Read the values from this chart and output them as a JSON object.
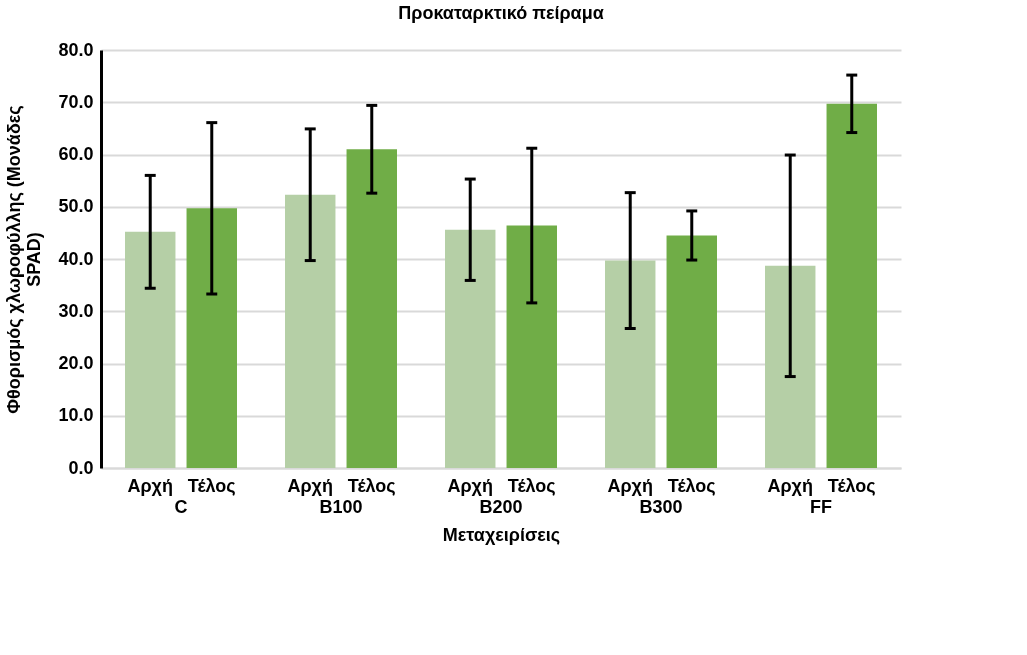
{
  "chart_data": {
    "type": "bar",
    "title": "Προκαταρκτικό πείραμα",
    "xlabel": "Μεταχειρίσεις",
    "ylabel": "Φθορισμός χλωροφύλλης (Μονάδες SPAD)",
    "categories": [
      "C",
      "B100",
      "B200",
      "B300",
      "FF"
    ],
    "series": [
      {
        "name": "Αρχή",
        "color": "#b5cfa6",
        "values": [
          45.2,
          52.3,
          45.6,
          39.7,
          38.7
        ],
        "errors": [
          10.8,
          12.6,
          9.7,
          13.0,
          21.2
        ]
      },
      {
        "name": "Τέλος",
        "color": "#70ad47",
        "values": [
          49.7,
          61.0,
          46.4,
          44.5,
          69.7
        ],
        "errors": [
          16.4,
          8.4,
          14.8,
          4.7,
          5.5
        ]
      }
    ],
    "ylim": [
      0,
      80
    ],
    "yticks": [
      {
        "value": 0,
        "label": "0.0"
      },
      {
        "value": 10,
        "label": "10.0"
      },
      {
        "value": 20,
        "label": "20.0"
      },
      {
        "value": 30,
        "label": "30.0"
      },
      {
        "value": 40,
        "label": "40.0"
      },
      {
        "value": 50,
        "label": "50.0"
      },
      {
        "value": 60,
        "label": "60.0"
      },
      {
        "value": 70,
        "label": "70.0"
      },
      {
        "value": 80,
        "label": "80.0"
      }
    ],
    "grid": "y",
    "legend": false
  }
}
